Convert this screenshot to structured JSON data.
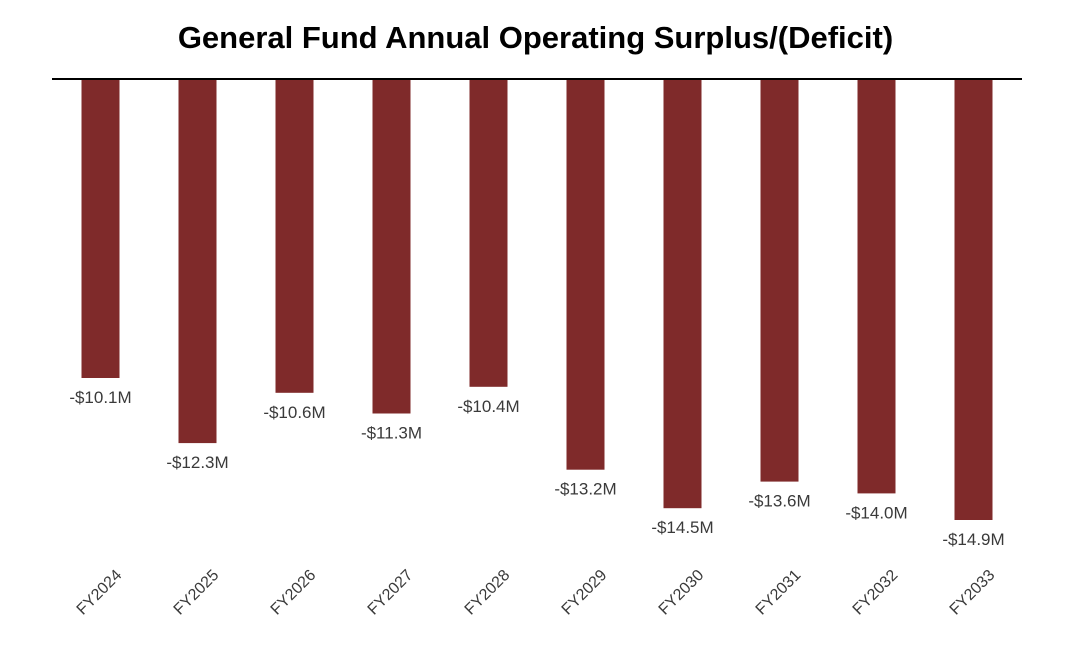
{
  "chart_data": {
    "type": "bar",
    "title": "General Fund Annual Operating Surplus/(Deficit)",
    "xlabel": "",
    "ylabel": "",
    "categories": [
      "FY2024",
      "FY2025",
      "FY2026",
      "FY2027",
      "FY2028",
      "FY2029",
      "FY2030",
      "FY2031",
      "FY2032",
      "FY2033"
    ],
    "values": [
      -10.1,
      -12.3,
      -10.6,
      -11.3,
      -10.4,
      -13.2,
      -14.5,
      -13.6,
      -14.0,
      -14.9
    ],
    "data_labels": [
      "-$10.1M",
      "-$12.3M",
      "-$10.6M",
      "-$11.3M",
      "-$10.4M",
      "-$13.2M",
      "-$14.5M",
      "-$13.6M",
      "-$14.0M",
      "-$14.9M"
    ],
    "unit": "$M",
    "ylim": [
      -15,
      0
    ],
    "grid": false,
    "legend": "none",
    "bar_color": "#7f2a2a",
    "axis_color": "#000000"
  }
}
